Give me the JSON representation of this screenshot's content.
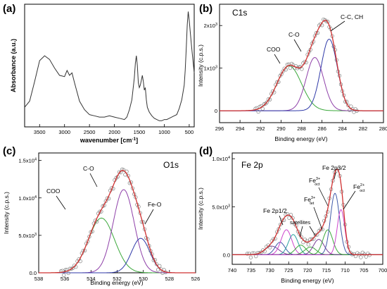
{
  "chart_data": [
    {
      "panel": "(a)",
      "type": "line",
      "xlabel": "wavenumber [cm",
      "xlabel_sup": "-1",
      "xlabel_end": "]",
      "ylabel": "Absorbance (a.u.)",
      "xlim": [
        3800,
        400
      ],
      "ylim": [
        0,
        1
      ],
      "xticks": [
        3500,
        3000,
        2500,
        2000,
        1500,
        1000,
        500
      ],
      "grid": false,
      "series": [
        {
          "color": "#333333",
          "x": [
            3800,
            3700,
            3600,
            3500,
            3400,
            3300,
            3200,
            3100,
            3000,
            2950,
            2900,
            2850,
            2800,
            2700,
            2600,
            2500,
            2400,
            2300,
            2200,
            2100,
            2000,
            1900,
            1800,
            1750,
            1700,
            1650,
            1600,
            1580,
            1560,
            1540,
            1520,
            1500,
            1480,
            1460,
            1440,
            1420,
            1400,
            1380,
            1360,
            1340,
            1300,
            1250,
            1200,
            1150,
            1100,
            1050,
            1000,
            950,
            900,
            850,
            800,
            750,
            700,
            650,
            600,
            580,
            560,
            540,
            520,
            500,
            480,
            460,
            440,
            420,
            400
          ],
          "y": [
            0.16,
            0.21,
            0.37,
            0.54,
            0.58,
            0.55,
            0.48,
            0.42,
            0.41,
            0.46,
            0.42,
            0.44,
            0.36,
            0.21,
            0.14,
            0.1,
            0.09,
            0.08,
            0.08,
            0.09,
            0.08,
            0.07,
            0.06,
            0.08,
            0.14,
            0.22,
            0.4,
            0.52,
            0.58,
            0.5,
            0.36,
            0.32,
            0.34,
            0.38,
            0.42,
            0.37,
            0.3,
            0.32,
            0.22,
            0.16,
            0.12,
            0.09,
            0.07,
            0.06,
            0.05,
            0.05,
            0.06,
            0.06,
            0.07,
            0.08,
            0.09,
            0.1,
            0.15,
            0.22,
            0.34,
            0.46,
            0.64,
            0.83,
            0.94,
            0.87,
            0.78,
            0.69,
            0.6,
            0.52,
            0.44
          ]
        }
      ]
    },
    {
      "panel": "(b)",
      "type": "line",
      "title": "C1s",
      "xlabel": "Binding energy (eV)",
      "ylabel": "Intensity (c.p.s.)",
      "xlim": [
        296,
        280
      ],
      "ylim": [
        -280,
        2500
      ],
      "xticks": [
        296,
        294,
        292,
        290,
        288,
        286,
        284,
        282,
        280
      ],
      "yticks": [
        0,
        1000,
        2000
      ],
      "ytick_labels": [
        {
          "base": "0"
        },
        {
          "base": "1x10",
          "exp": "3"
        },
        {
          "base": "2x10",
          "exp": "3"
        }
      ],
      "peaks": [
        {
          "name": "COO",
          "center": 289.2,
          "height": 1050,
          "width": 1.2,
          "color": "#3aa83a"
        },
        {
          "name": "C-O",
          "center": 286.7,
          "height": 1250,
          "width": 0.85,
          "color": "#8e3fa8"
        },
        {
          "name": "C-C, CH",
          "center": 285.3,
          "height": 1680,
          "width": 0.8,
          "color": "#2f39a8"
        }
      ],
      "annotations": [
        "COO",
        "C-O",
        "C-C, CH"
      ],
      "exp_range": [
        292.5,
        282.6
      ],
      "exp_color": "#808080",
      "fit_color": "#d03030"
    },
    {
      "panel": "(c)",
      "type": "line",
      "title": "O1s",
      "xlabel": "Binding energy (eV)",
      "ylabel": "Intensity (c.p.s.)",
      "xlim": [
        538,
        526
      ],
      "ylim": [
        0,
        16000
      ],
      "xticks": [
        538,
        536,
        534,
        532,
        530,
        528,
        526
      ],
      "yticks": [
        0,
        5000,
        10000,
        15000
      ],
      "ytick_labels": [
        {
          "base": "0.0"
        },
        {
          "base": "5.0x10",
          "exp": "3"
        },
        {
          "base": "1.0x10",
          "exp": "4"
        },
        {
          "base": "1.5x10",
          "exp": "4"
        }
      ],
      "peaks": [
        {
          "name": "COO",
          "center": 533.2,
          "height": 7300,
          "width": 1.0,
          "color": "#3aa83a"
        },
        {
          "name": "C-O",
          "center": 531.5,
          "height": 11100,
          "width": 0.8,
          "color": "#8e3fa8"
        },
        {
          "name": "Fe-O",
          "center": 530.2,
          "height": 4600,
          "width": 0.7,
          "color": "#2f39a8"
        }
      ],
      "annotations": [
        "COO",
        "C-O",
        "Fe-O"
      ],
      "exp_range": [
        536.3,
        528.3
      ],
      "exp_color": "#808080",
      "fit_color": "#d03030"
    },
    {
      "panel": "(d)",
      "type": "line",
      "title": "Fe 2p",
      "xlabel": "Binding energy (eV)",
      "ylabel": "Intensity (c.p.s.)",
      "xlim": [
        740,
        700
      ],
      "ylim": [
        -1000,
        10600
      ],
      "xticks": [
        740,
        735,
        730,
        725,
        720,
        715,
        710,
        705,
        700
      ],
      "yticks": [
        0,
        5000,
        10000
      ],
      "ytick_labels": [
        {
          "base": "0.0"
        },
        {
          "base": "5.0x10",
          "exp": "3"
        },
        {
          "base": "1.0x10",
          "exp": "4"
        }
      ],
      "peaks": [
        {
          "center": 729.5,
          "height": 900,
          "width": 1.8,
          "color": "#7a3f96"
        },
        {
          "center": 727.3,
          "height": 1300,
          "width": 1.3,
          "color": "#3f5aa8"
        },
        {
          "center": 725.6,
          "height": 2600,
          "width": 1.4,
          "color": "#cc44cc"
        },
        {
          "center": 723.8,
          "height": 2100,
          "width": 1.3,
          "color": "#2aa0a0"
        },
        {
          "center": 721.8,
          "height": 1000,
          "width": 1.4,
          "color": "#3aa83a"
        },
        {
          "center": 719.2,
          "height": 800,
          "width": 1.5,
          "color": "#3aa83a"
        },
        {
          "center": 717.0,
          "height": 1600,
          "width": 1.4,
          "color": "#7a3f96"
        },
        {
          "center": 714.6,
          "height": 2600,
          "width": 1.3,
          "color": "#3aa83a"
        },
        {
          "center": 712.7,
          "height": 6400,
          "width": 1.2,
          "color": "#3f5aa8"
        },
        {
          "center": 711.1,
          "height": 4700,
          "width": 1.0,
          "color": "#cc44cc"
        }
      ],
      "annotations": [
        "Fe 2p1/2",
        "satellites",
        "Fe",
        "3+",
        "tet",
        "Fe",
        "3+",
        "oct",
        "Fe 2p3/2",
        "Fe",
        "2+",
        "oct"
      ],
      "exp_range": [
        736.0,
        703.5
      ],
      "exp_color": "#808080",
      "fit_color": "#d03030"
    }
  ]
}
